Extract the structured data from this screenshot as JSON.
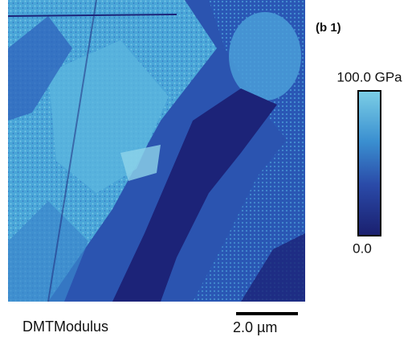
{
  "panel_label": "(b 1)",
  "colorbar": {
    "max_label": "100.0 GPa",
    "min_label": "0.0"
  },
  "caption": "DMTModulus",
  "scale_bar": {
    "label": "2.0 µm"
  }
}
